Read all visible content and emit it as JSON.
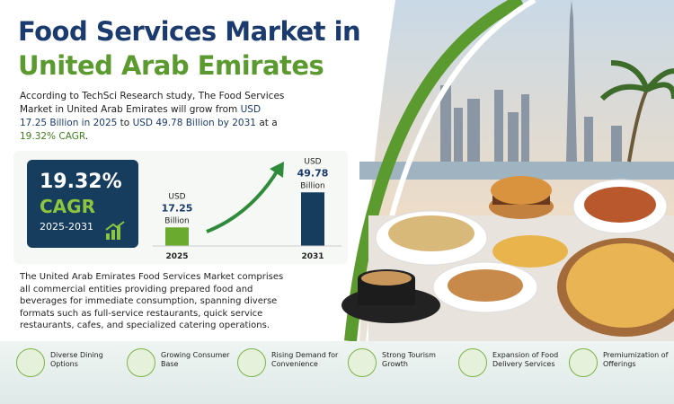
{
  "title": {
    "line1": "Food Services Market in",
    "line2": "United Arab Emirates"
  },
  "intro": {
    "text": "According to TechSci Research study, The Food Services Market in United Arab Emirates will grow from",
    "start": "USD 17.25 Billion in 2025",
    "to": "to",
    "end": "USD 49.78 Billion by 2031",
    "at": "at a",
    "cagr": "19.32% CAGR",
    "dot": "."
  },
  "cagr_box": {
    "value": "19.32%",
    "label": "CAGR",
    "period": "2025-2031"
  },
  "bars": [
    {
      "unit": "USD",
      "value": 17.25,
      "scale": "Billion",
      "year": "2025"
    },
    {
      "unit": "USD",
      "value": 49.78,
      "scale": "Billion",
      "year": "2031"
    }
  ],
  "description": "The United Arab Emirates Food Services Market comprises all commercial entities providing prepared food and beverages for immediate consumption, spanning diverse formats such as full-service restaurants, quick service restaurants, cafes, and specialized catering operations.",
  "features": [
    "Diverse Dining Options",
    "Growing Consumer Base",
    "Rising Demand for Convenience",
    "Strong Tourism Growth",
    "Expansion of Food Delivery Services",
    "Premiumization of Offerings"
  ]
}
